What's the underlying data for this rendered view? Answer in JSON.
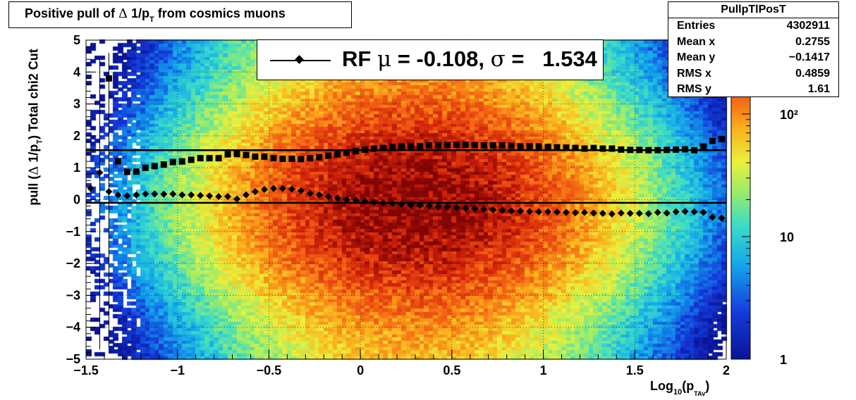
{
  "title": {
    "prefix": "Positive pull of ",
    "delta": "Δ",
    "mid": " 1/p",
    "sub": "T",
    "suffix": " from cosmics muons"
  },
  "stats": {
    "name": "PullpTlPosT",
    "rows": [
      {
        "label": "Entries",
        "value": "4302911"
      },
      {
        "label": "Mean x",
        "value": "0.2755"
      },
      {
        "label": "Mean y",
        "value": "−0.1417"
      },
      {
        "label": "RMS x",
        "value": "0.4859"
      },
      {
        "label": "RMS y",
        "value": "1.61"
      }
    ]
  },
  "legend": {
    "text_rf": "RF ",
    "mu": "μ",
    "text_mid": " = -0.108, ",
    "sigma": "σ",
    "text_end": " =   1.534"
  },
  "y_axis_title": {
    "prefix": "pull (",
    "delta": "Δ",
    "mid": " 1/p",
    "sub": "T",
    "suffix": ")  Total chi2 Cut"
  },
  "x_axis_title": {
    "prefix": "Log",
    "sub": "10",
    "mid": "(p",
    "sub2": "TAv",
    "suffix": ")"
  },
  "colorbar": {
    "labels": [
      "1",
      "10",
      "10²"
    ]
  },
  "chart_data": {
    "type": "heatmap",
    "xlim": [
      -1.5,
      2.0
    ],
    "ylim": [
      -5,
      5
    ],
    "x_ticks": [
      "−1.5",
      "−1",
      "−0.5",
      "0",
      "0.5",
      "1",
      "1.5",
      "2"
    ],
    "x_tick_values": [
      -1.5,
      -1,
      -0.5,
      0,
      0.5,
      1,
      1.5,
      2
    ],
    "y_ticks": [
      "5",
      "4",
      "3",
      "2",
      "1",
      "0",
      "−1",
      "−2",
      "−3",
      "−4",
      "−5"
    ],
    "y_tick_values": [
      5,
      4,
      3,
      2,
      1,
      0,
      -1,
      -2,
      -3,
      -4,
      -5
    ],
    "grid": true,
    "z_scale": "log",
    "z_range": [
      1,
      400
    ],
    "histogram": {
      "center_x": 0.3,
      "center_y": -0.1,
      "width_x": 0.55,
      "width_y": 1.9
    },
    "series": [
      {
        "marker": "square",
        "x": [
          -1.375,
          -1.325,
          -1.275,
          -1.225,
          -1.175,
          -1.125,
          -1.075,
          -1.025,
          -0.975,
          -0.925,
          -0.875,
          -0.825,
          -0.775,
          -0.725,
          -0.675,
          -0.625,
          -0.575,
          -0.525,
          -0.475,
          -0.425,
          -0.375,
          -0.325,
          -0.275,
          -0.225,
          -0.175,
          -0.125,
          -0.075,
          -0.025,
          0.025,
          0.075,
          0.125,
          0.175,
          0.225,
          0.275,
          0.325,
          0.375,
          0.425,
          0.475,
          0.525,
          0.575,
          0.625,
          0.675,
          0.725,
          0.775,
          0.825,
          0.875,
          0.925,
          0.975,
          1.025,
          1.075,
          1.125,
          1.175,
          1.225,
          1.275,
          1.325,
          1.375,
          1.425,
          1.475,
          1.525,
          1.575,
          1.625,
          1.675,
          1.725,
          1.775,
          1.825,
          1.875,
          1.925,
          1.975
        ],
        "y": [
          3.8,
          1.2,
          0.87,
          0.88,
          1.0,
          1.05,
          1.1,
          1.18,
          1.2,
          1.25,
          1.3,
          1.3,
          1.3,
          1.42,
          1.43,
          1.4,
          1.35,
          1.35,
          1.3,
          1.28,
          1.28,
          1.27,
          1.3,
          1.33,
          1.38,
          1.42,
          1.47,
          1.52,
          1.57,
          1.6,
          1.62,
          1.65,
          1.67,
          1.68,
          1.68,
          1.7,
          1.7,
          1.71,
          1.72,
          1.72,
          1.71,
          1.7,
          1.7,
          1.7,
          1.69,
          1.67,
          1.67,
          1.67,
          1.65,
          1.64,
          1.63,
          1.62,
          1.6,
          1.62,
          1.6,
          1.6,
          1.57,
          1.56,
          1.56,
          1.55,
          1.55,
          1.56,
          1.57,
          1.58,
          1.55,
          1.66,
          1.84,
          1.9
        ]
      },
      {
        "marker": "diamond",
        "x": [
          -1.475,
          -1.425,
          -1.375,
          -1.325,
          -1.275,
          -1.225,
          -1.175,
          -1.125,
          -1.075,
          -1.025,
          -0.975,
          -0.925,
          -0.875,
          -0.825,
          -0.775,
          -0.725,
          -0.675,
          -0.625,
          -0.575,
          -0.525,
          -0.475,
          -0.425,
          -0.375,
          -0.325,
          -0.275,
          -0.225,
          -0.175,
          -0.125,
          -0.075,
          -0.025,
          0.025,
          0.075,
          0.125,
          0.175,
          0.225,
          0.275,
          0.325,
          0.375,
          0.425,
          0.475,
          0.525,
          0.575,
          0.625,
          0.675,
          0.725,
          0.775,
          0.825,
          0.875,
          0.925,
          0.975,
          1.025,
          1.075,
          1.125,
          1.175,
          1.225,
          1.275,
          1.325,
          1.375,
          1.425,
          1.475,
          1.525,
          1.575,
          1.625,
          1.675,
          1.725,
          1.775,
          1.825,
          1.875,
          1.925,
          1.975
        ],
        "y": [
          0.35,
          0.85,
          0.25,
          0.15,
          0.12,
          0.15,
          0.18,
          0.18,
          0.17,
          0.18,
          0.15,
          0.15,
          0.13,
          0.12,
          0.1,
          0.1,
          0.02,
          0.15,
          0.25,
          0.32,
          0.35,
          0.35,
          0.33,
          0.28,
          0.2,
          0.15,
          0.1,
          0.05,
          0.0,
          -0.02,
          -0.05,
          -0.08,
          -0.1,
          -0.12,
          -0.15,
          -0.17,
          -0.18,
          -0.2,
          -0.22,
          -0.23,
          -0.25,
          -0.27,
          -0.28,
          -0.3,
          -0.32,
          -0.33,
          -0.35,
          -0.36,
          -0.37,
          -0.38,
          -0.38,
          -0.39,
          -0.4,
          -0.41,
          -0.4,
          -0.42,
          -0.43,
          -0.45,
          -0.42,
          -0.43,
          -0.43,
          -0.44,
          -0.4,
          -0.42,
          -0.38,
          -0.37,
          -0.38,
          -0.4,
          -0.55,
          -0.58
        ]
      }
    ],
    "lines": [
      {
        "y": 1.55
      },
      {
        "y": -0.1
      }
    ]
  }
}
